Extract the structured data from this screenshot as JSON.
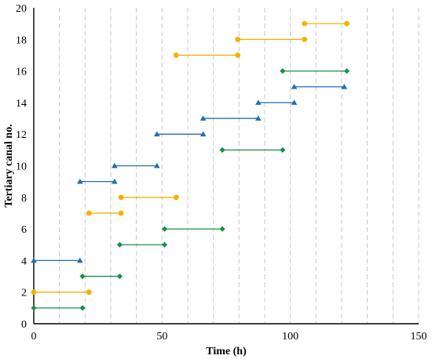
{
  "chart_data": {
    "type": "line",
    "title": "",
    "xlabel": "Time (h)",
    "ylabel": "Tertiary canal no.",
    "xlim": [
      0,
      150
    ],
    "ylim": [
      0,
      20
    ],
    "x_ticks": [
      0,
      50,
      100,
      150
    ],
    "y_ticks": [
      0,
      2,
      4,
      6,
      8,
      10,
      12,
      14,
      16,
      18,
      20
    ],
    "vertical_grid": true,
    "vertical_grid_step": 10,
    "vertical_grid_style": "dashed",
    "horizontal_grid": false,
    "legend": "none",
    "series": [
      {
        "color": "#f0b400",
        "marker": "circle",
        "segments": [
          {
            "canal": 2,
            "start": 0,
            "end": 21.5
          },
          {
            "canal": 7,
            "start": 21.5,
            "end": 34.0
          },
          {
            "canal": 8,
            "start": 34.0,
            "end": 55.5
          },
          {
            "canal": 17,
            "start": 55.5,
            "end": 79.5
          },
          {
            "canal": 18,
            "start": 79.5,
            "end": 105.5
          },
          {
            "canal": 19,
            "start": 105.5,
            "end": 122.0
          }
        ]
      },
      {
        "color": "#1a8f4a",
        "marker": "diamond",
        "segments": [
          {
            "canal": 1,
            "start": 0,
            "end": 19.0
          },
          {
            "canal": 3,
            "start": 19.0,
            "end": 33.5
          },
          {
            "canal": 5,
            "start": 33.5,
            "end": 51.0
          },
          {
            "canal": 6,
            "start": 51.0,
            "end": 73.5
          },
          {
            "canal": 11,
            "start": 73.5,
            "end": 97.0
          },
          {
            "canal": 16,
            "start": 97.0,
            "end": 122.0
          }
        ]
      },
      {
        "color": "#1f6fb5",
        "marker": "triangle",
        "segments": [
          {
            "canal": 4,
            "start": 0,
            "end": 18.0
          },
          {
            "canal": 9,
            "start": 18.0,
            "end": 31.5
          },
          {
            "canal": 10,
            "start": 31.5,
            "end": 48.0
          },
          {
            "canal": 12,
            "start": 48.0,
            "end": 66.0
          },
          {
            "canal": 13,
            "start": 66.0,
            "end": 87.5
          },
          {
            "canal": 14,
            "start": 87.5,
            "end": 101.5
          },
          {
            "canal": 15,
            "start": 101.5,
            "end": 121.0
          }
        ]
      }
    ]
  }
}
